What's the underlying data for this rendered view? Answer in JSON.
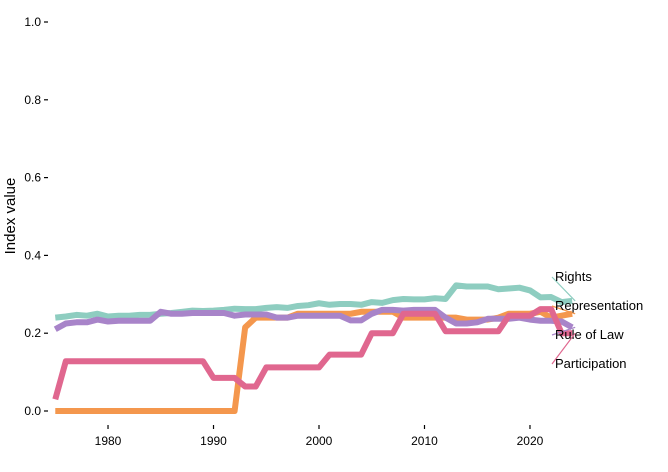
{
  "chart_data": {
    "type": "line",
    "title": "",
    "xlabel": "",
    "ylabel": "Index value",
    "xlim": [
      1974.5,
      2025.5
    ],
    "ylim": [
      0,
      1
    ],
    "x_ticks": [
      1980,
      1990,
      2000,
      2010,
      2020
    ],
    "y_ticks": [
      "0.0",
      "0.2",
      "0.4",
      "0.6",
      "0.8",
      "1.0"
    ],
    "grid": false,
    "legend": "direct labels at right end of lines",
    "x": [
      1975,
      1976,
      1977,
      1978,
      1979,
      1980,
      1981,
      1982,
      1983,
      1984,
      1985,
      1986,
      1987,
      1988,
      1989,
      1990,
      1991,
      1992,
      1993,
      1994,
      1995,
      1996,
      1997,
      1998,
      1999,
      2000,
      2001,
      2002,
      2003,
      2004,
      2005,
      2006,
      2007,
      2008,
      2009,
      2010,
      2011,
      2012,
      2013,
      2014,
      2015,
      2016,
      2017,
      2018,
      2019,
      2020,
      2021,
      2022,
      2023,
      2024
    ],
    "series": [
      {
        "name": "Rights",
        "color": "#8ecdc0",
        "values": [
          0.24,
          0.243,
          0.247,
          0.245,
          0.25,
          0.243,
          0.245,
          0.245,
          0.247,
          0.247,
          0.25,
          0.252,
          0.255,
          0.258,
          0.257,
          0.258,
          0.26,
          0.263,
          0.262,
          0.262,
          0.265,
          0.267,
          0.265,
          0.27,
          0.272,
          0.277,
          0.273,
          0.275,
          0.275,
          0.273,
          0.28,
          0.278,
          0.285,
          0.288,
          0.287,
          0.287,
          0.29,
          0.288,
          0.323,
          0.32,
          0.32,
          0.32,
          0.313,
          0.315,
          0.317,
          0.31,
          0.292,
          0.293,
          0.28,
          0.283
        ]
      },
      {
        "name": "Representation",
        "color": "#f4974d",
        "values": [
          0,
          0,
          0,
          0,
          0,
          0,
          0,
          0,
          0,
          0,
          0,
          0,
          0,
          0,
          0,
          0,
          0,
          0,
          0.215,
          0.24,
          0.24,
          0.24,
          0.24,
          0.25,
          0.25,
          0.25,
          0.25,
          0.25,
          0.25,
          0.255,
          0.255,
          0.255,
          0.255,
          0.24,
          0.24,
          0.24,
          0.24,
          0.24,
          0.24,
          0.235,
          0.235,
          0.235,
          0.24,
          0.25,
          0.25,
          0.25,
          0.255,
          0.24,
          0.245,
          0.25
        ]
      },
      {
        "name": "Rule of Law",
        "color": "#a884c9",
        "values": [
          0.21,
          0.225,
          0.228,
          0.228,
          0.235,
          0.23,
          0.232,
          0.232,
          0.232,
          0.232,
          0.255,
          0.25,
          0.25,
          0.252,
          0.252,
          0.252,
          0.252,
          0.245,
          0.248,
          0.248,
          0.248,
          0.24,
          0.24,
          0.245,
          0.245,
          0.245,
          0.245,
          0.245,
          0.233,
          0.233,
          0.25,
          0.26,
          0.26,
          0.258,
          0.26,
          0.26,
          0.26,
          0.24,
          0.225,
          0.225,
          0.228,
          0.237,
          0.237,
          0.237,
          0.24,
          0.235,
          0.232,
          0.232,
          0.23,
          0.215
        ]
      },
      {
        "name": "Participation",
        "color": "#e0678f",
        "values": [
          0.03,
          0.128,
          0.128,
          0.128,
          0.128,
          0.128,
          0.128,
          0.128,
          0.128,
          0.128,
          0.128,
          0.128,
          0.128,
          0.128,
          0.128,
          0.085,
          0.085,
          0.085,
          0.063,
          0.063,
          0.112,
          0.112,
          0.112,
          0.112,
          0.112,
          0.112,
          0.145,
          0.145,
          0.145,
          0.145,
          0.2,
          0.2,
          0.2,
          0.25,
          0.25,
          0.25,
          0.25,
          0.205,
          0.205,
          0.205,
          0.205,
          0.205,
          0.205,
          0.245,
          0.245,
          0.245,
          0.262,
          0.262,
          0.2,
          0.2
        ]
      }
    ]
  }
}
